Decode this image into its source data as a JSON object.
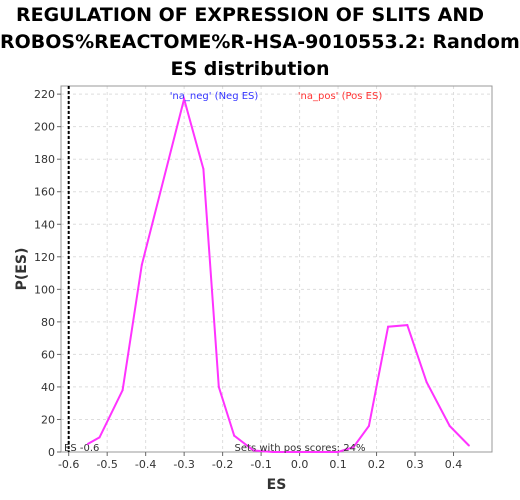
{
  "chart_data": {
    "type": "line",
    "title_lines": [
      "REGULATION OF EXPRESSION OF SLITS AND",
      "ROBOS%REACTOME%R-HSA-9010553.2: Random",
      "ES distribution"
    ],
    "xlabel": "ES",
    "ylabel": "P(ES)",
    "xlim": [
      -0.62,
      0.5
    ],
    "ylim": [
      0,
      225
    ],
    "xticks": [
      -0.6,
      -0.5,
      -0.4,
      -0.3,
      -0.2,
      -0.1,
      0.0,
      0.1,
      0.2,
      0.3,
      0.4
    ],
    "xtick_labels": [
      "-0.6",
      "-0.5",
      "-0.4",
      "-0.3",
      "-0.2",
      "-0.1",
      "0.0",
      "0.1",
      "0.2",
      "0.3",
      "0.4"
    ],
    "yticks": [
      0,
      20,
      40,
      60,
      80,
      100,
      120,
      140,
      160,
      180,
      200,
      220
    ],
    "grid": true,
    "legend": {
      "placement": "top-center",
      "entries": [
        {
          "label": "'na_neg' (Neg ES)",
          "color": "#3333ff"
        },
        {
          "label": "'na_pos' (Pos ES)",
          "color": "#ff3333"
        }
      ]
    },
    "series": [
      {
        "color": "#ff33ff",
        "x": [
          -0.55,
          -0.52,
          -0.46,
          -0.41,
          -0.3,
          -0.25,
          -0.21,
          -0.17,
          -0.12,
          -0.07,
          0.0,
          0.05,
          0.1,
          0.14,
          0.18,
          0.23,
          0.28,
          0.33,
          0.39,
          0.44
        ],
        "y": [
          5,
          9,
          38,
          115,
          217,
          174,
          40,
          10,
          1,
          0,
          0,
          0,
          0,
          3,
          16,
          77,
          78,
          43,
          16,
          4
        ]
      }
    ],
    "vline": {
      "x": -0.6,
      "style": "dashed",
      "color": "#000000"
    },
    "annotations": [
      {
        "text": "ES -0.6"
      },
      {
        "text": "Sets with pos scores: 24%"
      }
    ]
  }
}
